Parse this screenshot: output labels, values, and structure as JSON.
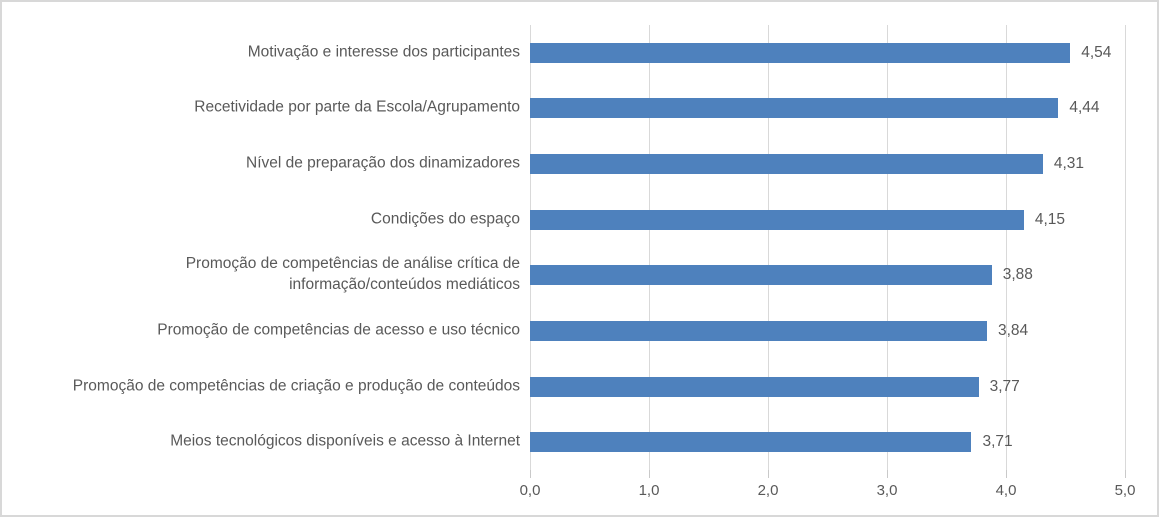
{
  "chart_data": {
    "type": "bar",
    "orientation": "horizontal",
    "title": "",
    "xlabel": "",
    "ylabel": "",
    "categories": [
      "Motivação e interesse dos participantes",
      "Recetividade por parte da Escola/Agrupamento",
      "Nível de preparação dos dinamizadores",
      "Condições do espaço",
      "Promoção de competências de análise crítica de\ninformação/conteúdos mediáticos",
      "Promoção de competências de acesso e uso técnico",
      "Promoção de competências de criação e produção de conteúdos",
      "Meios tecnológicos disponíveis e acesso à Internet"
    ],
    "values": [
      4.54,
      4.44,
      4.31,
      4.15,
      3.88,
      3.84,
      3.77,
      3.71
    ],
    "value_labels": [
      "4,54",
      "4,44",
      "4,31",
      "4,15",
      "3,88",
      "3,84",
      "3,77",
      "3,71"
    ],
    "xlim": [
      0,
      5
    ],
    "x_tick_values": [
      0,
      1,
      2,
      3,
      4,
      5
    ],
    "x_tick_labels": [
      "0,0",
      "1,0",
      "2,0",
      "3,0",
      "4,0",
      "5,0"
    ],
    "grid": true,
    "legend": "none",
    "colors": {
      "bar": "#4e81bd",
      "gridline": "#d9d9d9",
      "label_text": "#595959",
      "frame_border": "#d8d8d8"
    }
  }
}
